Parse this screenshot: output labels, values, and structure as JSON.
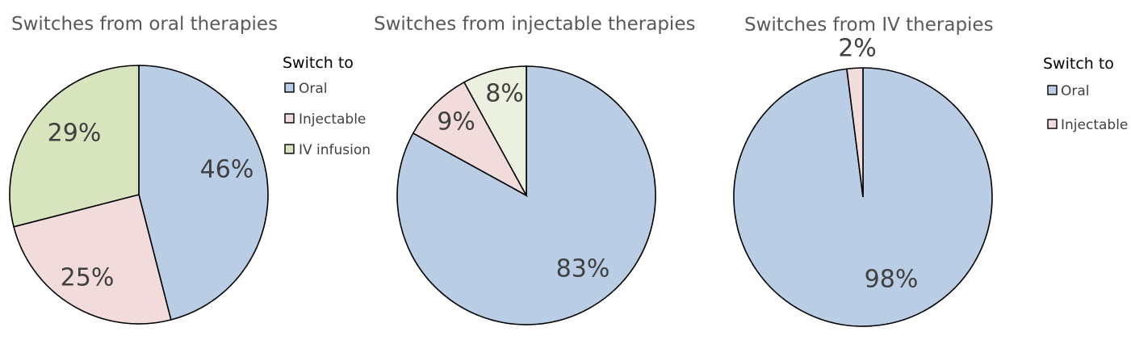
{
  "chart_data": [
    {
      "type": "pie",
      "title": "Switches from oral therapies",
      "legend_title": "Switch to",
      "slices": [
        {
          "label": "Oral",
          "value": 46,
          "display": "46%",
          "color": "#b9cde5"
        },
        {
          "label": "Injectable",
          "value": 25,
          "display": "25%",
          "color": "#f2dcdb"
        },
        {
          "label": "IV infusion",
          "value": 29,
          "display": "29%",
          "color": "#d7e4bd"
        }
      ],
      "legend": [
        {
          "label": "Oral",
          "color": "#b9cde5"
        },
        {
          "label": "Injectable",
          "color": "#f2dcdb"
        },
        {
          "label": "IV infusion",
          "color": "#d7e4bd"
        }
      ]
    },
    {
      "type": "pie",
      "title": "Switches from injectable therapies",
      "slices": [
        {
          "label": "Oral",
          "value": 83,
          "display": "83%",
          "color": "#b9cde5"
        },
        {
          "label": "Injectable",
          "value": 9,
          "display": "9%",
          "color": "#f2dcdb"
        },
        {
          "label": "IV infusion",
          "value": 8,
          "display": "8%",
          "color": "#ebf1de"
        }
      ]
    },
    {
      "type": "pie",
      "title": "Switches from IV therapies",
      "legend_title": "Switch to",
      "slices": [
        {
          "label": "Oral",
          "value": 98,
          "display": "98%",
          "color": "#b9cde5"
        },
        {
          "label": "Injectable",
          "value": 2,
          "display": "2%",
          "color": "#f2dcdb"
        }
      ],
      "legend": [
        {
          "label": "Oral",
          "color": "#b9cde5"
        },
        {
          "label": "Injectable",
          "color": "#f2dcdb"
        }
      ]
    }
  ]
}
